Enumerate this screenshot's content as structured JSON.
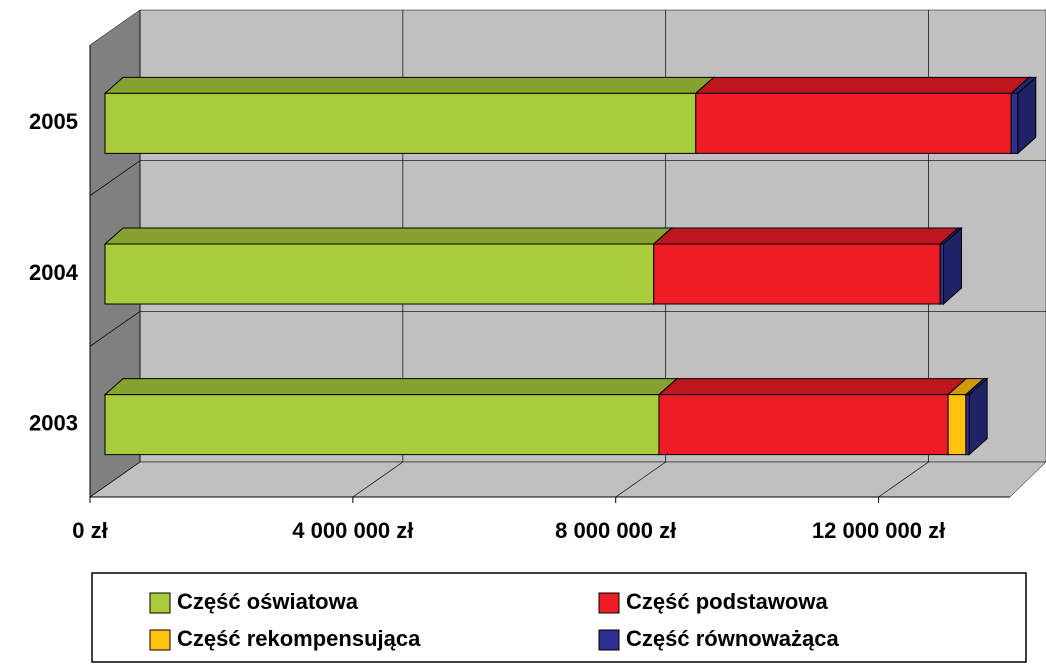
{
  "chart_data": {
    "type": "bar3d_stacked_horizontal",
    "categories": [
      "2003",
      "2004",
      "2005"
    ],
    "series": [
      {
        "name": "Część oświatowa",
        "color": "#a8cc3c",
        "values": [
          8430000,
          8350000,
          8990000
        ]
      },
      {
        "name": "Część podstawowa",
        "color": "#ee1c25",
        "values": [
          4400000,
          4360000,
          4800000
        ]
      },
      {
        "name": "Część rekompensująca",
        "color": "#ffc20e",
        "values": [
          270000,
          0,
          0
        ]
      },
      {
        "name": "Część równoważąca",
        "color": "#2e3192",
        "values": [
          50000,
          50000,
          100000
        ]
      }
    ],
    "xlim": [
      0,
      14000000
    ],
    "xticks": [
      {
        "value": 0,
        "label": "0 zł"
      },
      {
        "value": 4000000,
        "label": "4 000 000 zł"
      },
      {
        "value": 8000000,
        "label": "8 000 000 zł"
      },
      {
        "value": 12000000,
        "label": "12 000 000 zł"
      }
    ],
    "grid": true,
    "legend": "bottom"
  }
}
